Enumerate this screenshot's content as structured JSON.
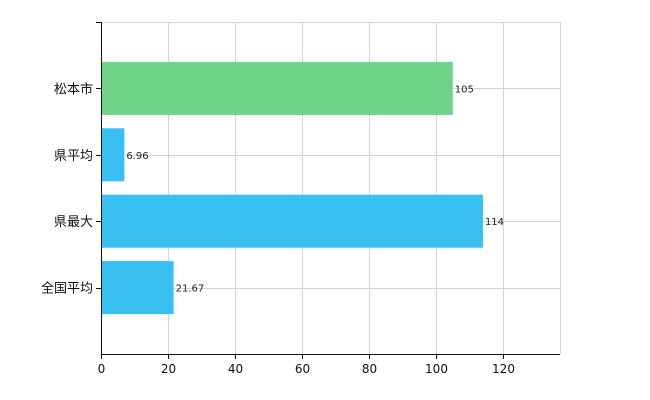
{
  "chart_data": {
    "type": "bar",
    "orientation": "horizontal",
    "categories": [
      "松本市",
      "県平均",
      "県最大",
      "全国平均"
    ],
    "values": [
      105,
      6.96,
      114,
      21.67
    ],
    "value_labels": [
      "105",
      "6.96",
      "114",
      "21.67"
    ],
    "colors": [
      "#6fd38a",
      "#38c0f2",
      "#38c0f2",
      "#38c0f2"
    ],
    "x_ticks": [
      0,
      20,
      40,
      60,
      80,
      100,
      120
    ],
    "xlim": [
      0,
      137
    ],
    "grid": true,
    "title": "",
    "xlabel": "",
    "ylabel": ""
  }
}
